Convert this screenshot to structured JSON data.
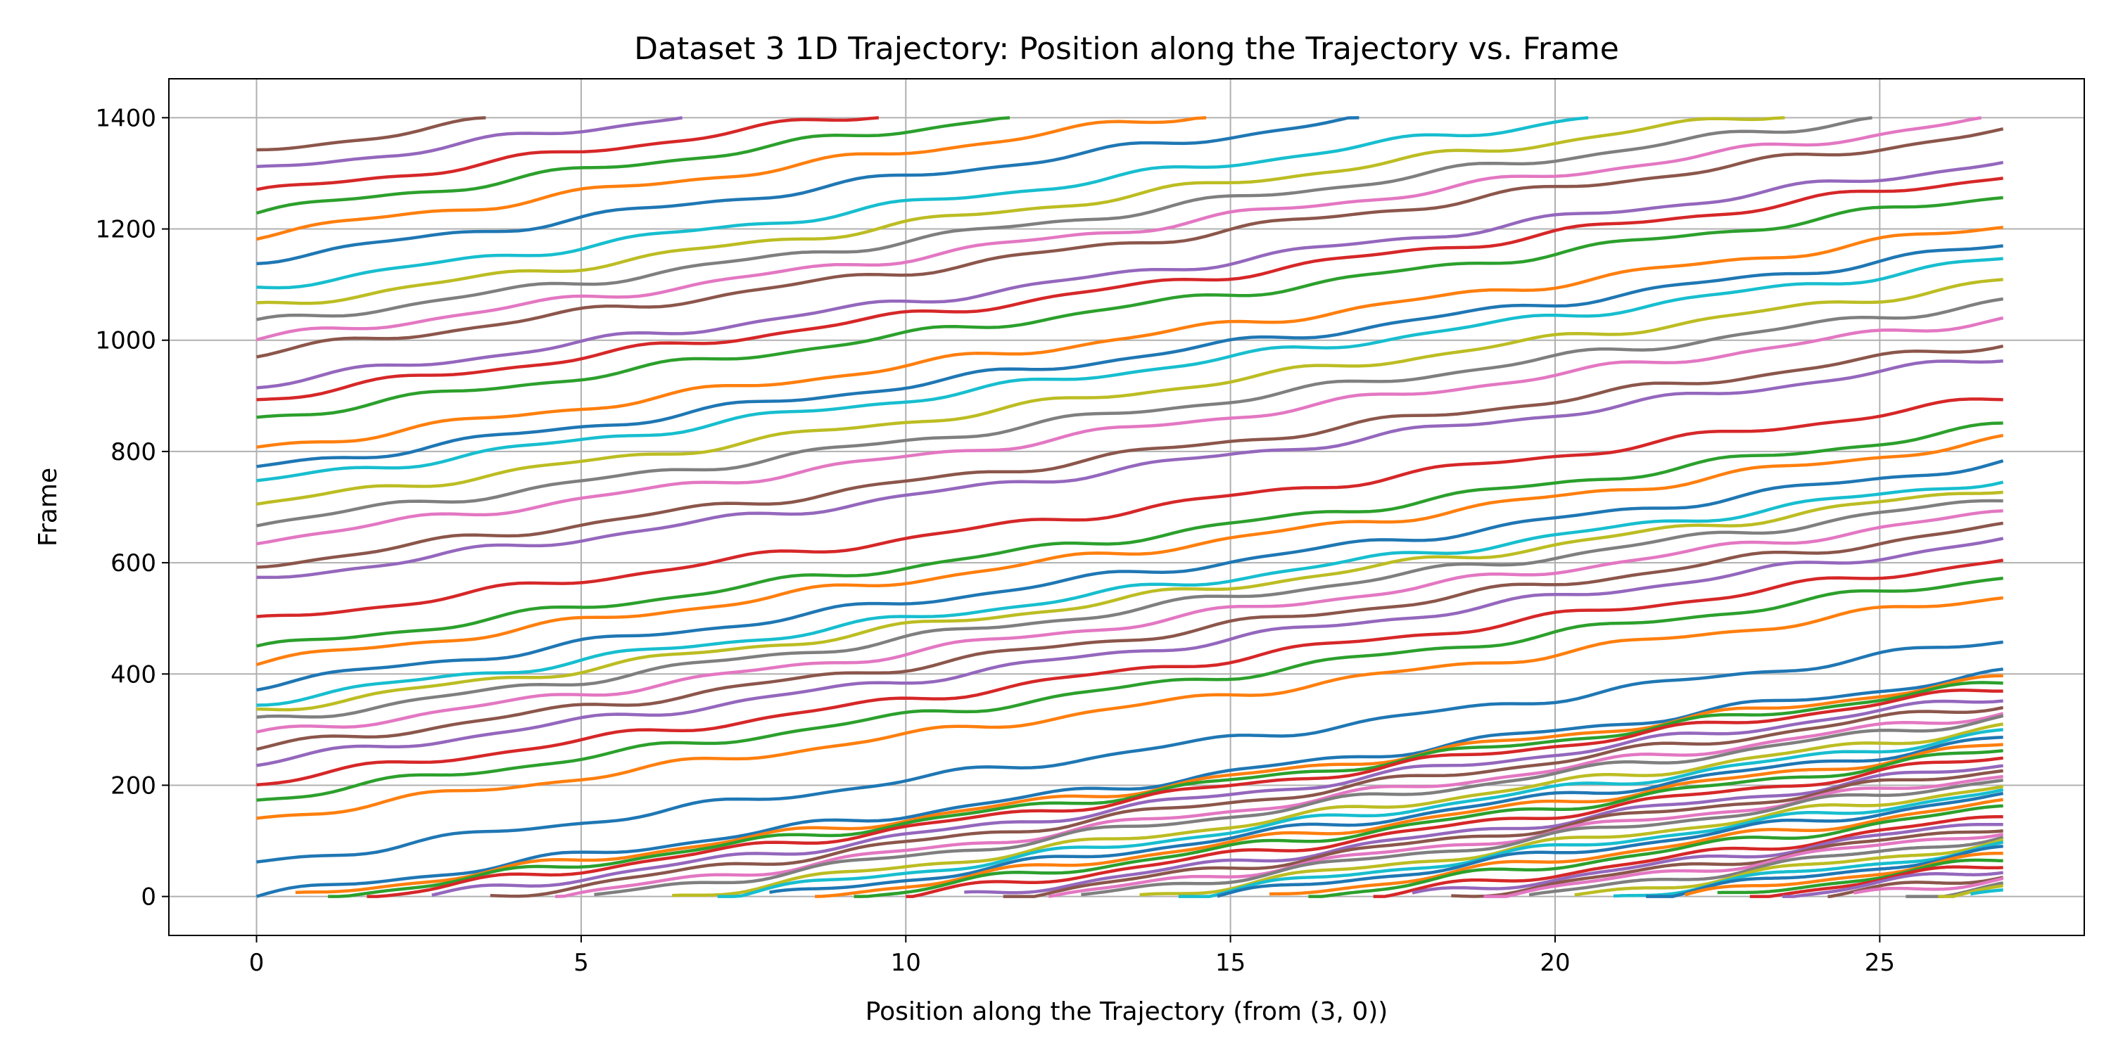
{
  "chart_data": {
    "type": "line",
    "title": "Dataset 3 1D Trajectory: Position along the Trajectory vs. Frame",
    "xlabel": "Position along the Trajectory (from (3, 0))",
    "ylabel": "Frame",
    "xlim": [
      -1.35,
      28.15
    ],
    "ylim": [
      -70,
      1470
    ],
    "xticks": [
      0,
      5,
      10,
      15,
      20,
      25
    ],
    "yticks": [
      0,
      200,
      400,
      600,
      800,
      1000,
      1200,
      1400
    ],
    "grid": true,
    "legend": "none",
    "colors": [
      "#1f77b4",
      "#ff7f0e",
      "#2ca02c",
      "#d62728",
      "#9467bd",
      "#8c564b",
      "#e377c2",
      "#7f7f7f",
      "#bcbd22",
      "#17becf"
    ],
    "trajectory_length": 26.9,
    "frame_max": 1400,
    "series_description": "Many diagonal vehicle trajectories (position increasing with frame); each line enters at x=0 or at frame 0 and exits at x=26.9 or at frame 1400.",
    "start_offsets_x": [
      0.0,
      0.6,
      1.1,
      1.7,
      2.7,
      3.6,
      4.6,
      5.2,
      6.4,
      7.1,
      7.9,
      8.6,
      9.2,
      10.0,
      10.9,
      11.5,
      12.2,
      12.7,
      13.6,
      14.2,
      14.8,
      15.6,
      16.2,
      17.2,
      17.8,
      18.4,
      18.9,
      19.6,
      20.3,
      20.9,
      21.4,
      22.0,
      22.5,
      23.0,
      23.5,
      24.2,
      24.6,
      25.4,
      25.9,
      26.4
    ],
    "start_offsets_frame": [
      60,
      140,
      175,
      205,
      240,
      265,
      290,
      315,
      335,
      350,
      380,
      420,
      445,
      495,
      570,
      595,
      640,
      670,
      705,
      745,
      770,
      805,
      860,
      895,
      920,
      975,
      1000,
      1030,
      1060,
      1095,
      1145,
      1190,
      1230,
      1265,
      1305,
      1340
    ]
  }
}
